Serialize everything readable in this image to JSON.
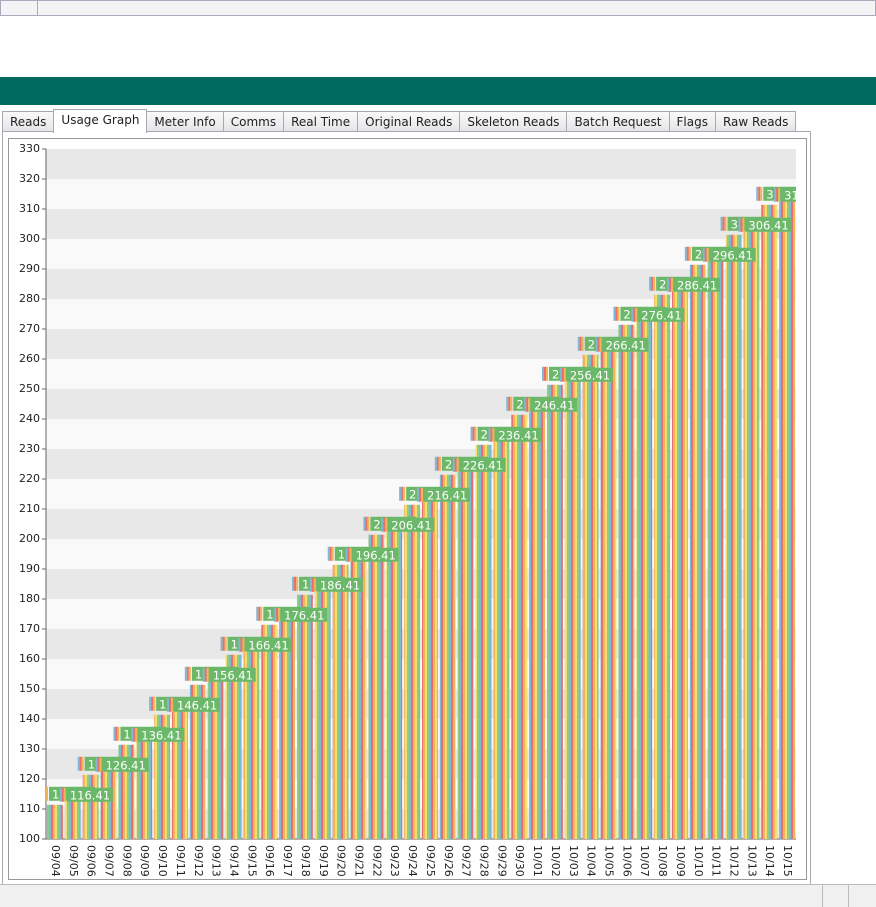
{
  "tabs": [
    "Reads",
    "Usage Graph",
    "Meter Info",
    "Comms",
    "Real Time",
    "Original Reads",
    "Skeleton Reads",
    "Batch Request",
    "Flags",
    "Raw Reads"
  ],
  "active_tab": 1,
  "chart_data": {
    "type": "bar",
    "categories": [
      "09/04",
      "09/05",
      "09/06",
      "09/07",
      "09/08",
      "09/09",
      "09/10",
      "09/11",
      "09/12",
      "09/13",
      "09/14",
      "09/15",
      "09/16",
      "09/17",
      "09/18",
      "09/19",
      "09/20",
      "09/21",
      "09/22",
      "09/23",
      "09/24",
      "09/25",
      "09/26",
      "09/27",
      "09/28",
      "09/29",
      "09/30",
      "10/01",
      "10/02",
      "10/03",
      "10/04",
      "10/05",
      "10/06",
      "10/07",
      "10/08",
      "10/09",
      "10/10",
      "10/11",
      "10/12",
      "10/13",
      "10/14",
      "10/15"
    ],
    "values": [
      111.41,
      116.41,
      121.41,
      126.41,
      131.41,
      136.41,
      141.41,
      146.41,
      151.41,
      156.41,
      161.41,
      166.41,
      171.41,
      176.41,
      181.41,
      186.41,
      191.41,
      196.41,
      201.41,
      206.41,
      211.41,
      216.41,
      221.41,
      226.41,
      231.41,
      236.41,
      241.41,
      246.41,
      251.41,
      256.41,
      261.41,
      266.41,
      271.41,
      276.41,
      281.41,
      286.41,
      291.41,
      296.41,
      301.41,
      306.41,
      311.41,
      316.41
    ],
    "bar_colors": [
      "#7fb7d4",
      "#e8706a",
      "#f2b457",
      "#f1df72",
      "#8ccc8a"
    ],
    "ylim": [
      100,
      330
    ],
    "yticks": [
      100,
      110,
      120,
      130,
      140,
      150,
      160,
      170,
      180,
      190,
      200,
      210,
      220,
      230,
      240,
      250,
      260,
      270,
      280,
      290,
      300,
      310,
      320,
      330
    ],
    "grid": true
  }
}
